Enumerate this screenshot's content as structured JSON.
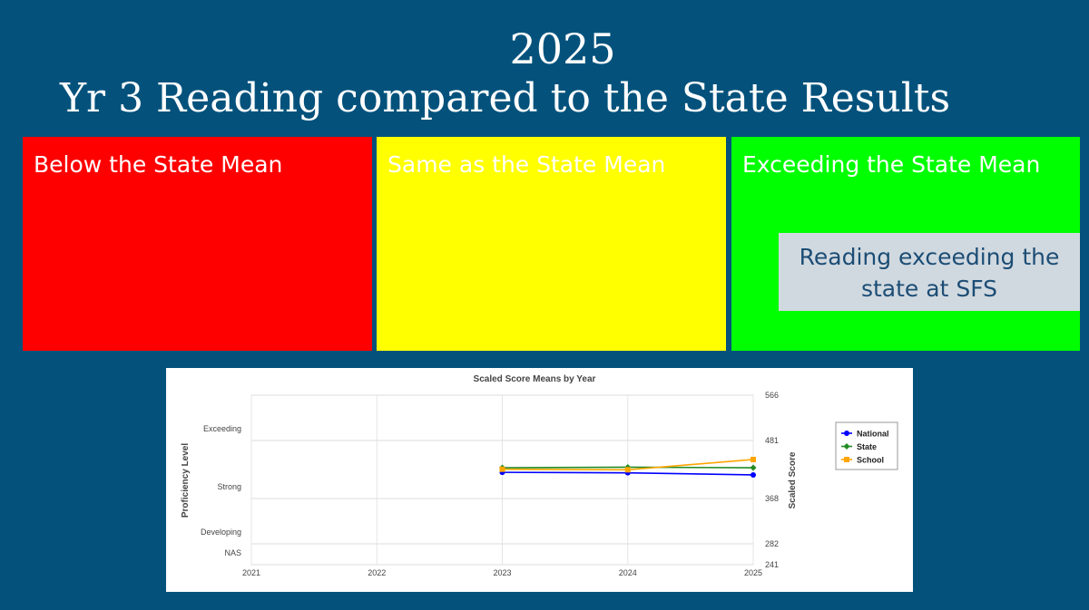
{
  "slide": {
    "year": "2025",
    "title": "Yr 3 Reading compared to the State Results",
    "boxes": [
      {
        "label": "Below the State Mean",
        "color": "#ff0000"
      },
      {
        "label": "Same as the State Mean",
        "color": "#ffff00"
      },
      {
        "label": "Exceeding the State Mean",
        "color": "#00ff00"
      }
    ],
    "callout": "Reading exceeding the state at SFS"
  },
  "chart_data": {
    "type": "line",
    "title": "Scaled Score Means by Year",
    "ylabel_left": "Proficiency Level",
    "ylabel_right": "Scaled Score",
    "x": [
      "2021",
      "2022",
      "2023",
      "2024",
      "2025"
    ],
    "right_ticks": [
      241,
      282,
      368,
      481,
      566
    ],
    "left_bands": [
      {
        "label": "Exceeding",
        "from": 481,
        "to": 566
      },
      {
        "label": "Strong",
        "from": 368,
        "to": 481
      },
      {
        "label": "Developing",
        "from": 282,
        "to": 368
      },
      {
        "label": "NAS",
        "from": 241,
        "to": 282
      }
    ],
    "ylim": [
      241,
      566
    ],
    "grid": true,
    "legend": "right",
    "series": [
      {
        "name": "National",
        "color": "#0000ff",
        "marker": "circle",
        "values": [
          null,
          null,
          419,
          418,
          414
        ]
      },
      {
        "name": "State",
        "color": "#228b22",
        "marker": "diamond",
        "values": [
          null,
          null,
          428,
          429,
          428
        ]
      },
      {
        "name": "School",
        "color": "#ffa500",
        "marker": "square",
        "values": [
          null,
          null,
          425,
          424,
          444
        ]
      }
    ]
  }
}
